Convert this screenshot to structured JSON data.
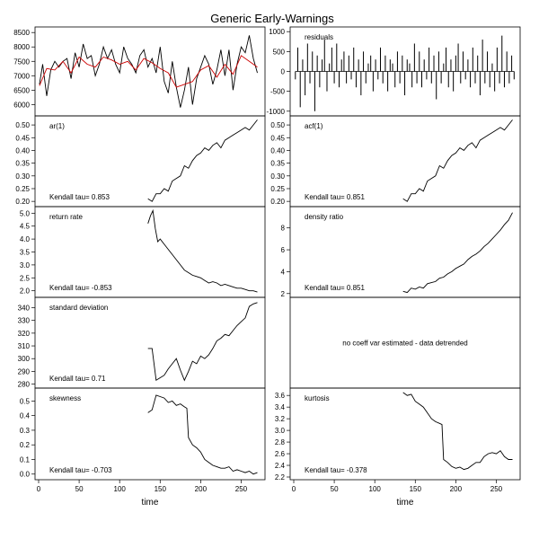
{
  "figure": {
    "title": "Generic Early-Warnings"
  },
  "chart_data": [
    {
      "id": "data",
      "type": "line",
      "panel": "left-1",
      "xlim": [
        0,
        275
      ],
      "ylim": [
        5700,
        8600
      ],
      "yticks": [
        "6000",
        "6500",
        "7000",
        "7500",
        "8000",
        "8500"
      ],
      "label": "",
      "kendall": "",
      "series": [
        {
          "color": "#000000",
          "x": [
            1,
            5,
            10,
            15,
            20,
            25,
            30,
            35,
            40,
            45,
            50,
            55,
            60,
            65,
            70,
            75,
            80,
            85,
            90,
            95,
            100,
            105,
            110,
            115,
            120,
            125,
            130,
            135,
            140,
            145,
            150,
            155,
            160,
            165,
            170,
            175,
            180,
            185,
            190,
            195,
            200,
            205,
            210,
            215,
            220,
            225,
            230,
            235,
            240,
            245,
            250,
            255,
            260,
            265,
            270
          ],
          "y": [
            6700,
            7400,
            6300,
            7200,
            7500,
            7300,
            7500,
            7600,
            6900,
            7800,
            7300,
            8100,
            7600,
            7700,
            7000,
            7400,
            8000,
            7600,
            7900,
            7400,
            7100,
            8000,
            7600,
            7400,
            7100,
            7700,
            7900,
            7300,
            7600,
            7100,
            8000,
            6800,
            6400,
            7500,
            6600,
            5900,
            6500,
            7300,
            6000,
            6900,
            7300,
            7700,
            7400,
            6700,
            7200,
            7900,
            7000,
            7900,
            6500,
            7400,
            8000,
            7800,
            8400,
            7600,
            7100
          ]
        },
        {
          "color": "#cc0000",
          "x": [
            1,
            10,
            20,
            30,
            40,
            50,
            60,
            70,
            80,
            90,
            100,
            110,
            120,
            130,
            140,
            150,
            160,
            170,
            180,
            190,
            200,
            210,
            220,
            230,
            240,
            250,
            260,
            270
          ],
          "y": [
            6650,
            7250,
            7200,
            7500,
            7100,
            7650,
            7400,
            7300,
            7650,
            7550,
            7400,
            7500,
            7200,
            7600,
            7450,
            7250,
            7100,
            6600,
            6700,
            6800,
            7200,
            7350,
            6950,
            7400,
            7050,
            7700,
            7500,
            7300
          ]
        }
      ]
    },
    {
      "id": "residuals",
      "type": "bar",
      "panel": "right-1",
      "xlim": [
        0,
        275
      ],
      "ylim": [
        -1050,
        1050
      ],
      "yticks": [
        "-1000",
        "-500",
        "0",
        "500",
        "1000"
      ],
      "label": "residuals",
      "kendall": "",
      "x": [
        2,
        5,
        8,
        11,
        14,
        17,
        20,
        23,
        26,
        29,
        32,
        35,
        38,
        41,
        44,
        47,
        50,
        53,
        56,
        59,
        62,
        65,
        68,
        71,
        74,
        77,
        80,
        83,
        86,
        89,
        92,
        95,
        98,
        101,
        104,
        107,
        110,
        113,
        116,
        119,
        122,
        125,
        128,
        131,
        134,
        137,
        140,
        143,
        146,
        149,
        152,
        155,
        158,
        161,
        164,
        167,
        170,
        173,
        176,
        179,
        182,
        185,
        188,
        191,
        194,
        197,
        200,
        203,
        206,
        209,
        212,
        215,
        218,
        221,
        224,
        227,
        230,
        233,
        236,
        239,
        242,
        245,
        248,
        251,
        254,
        257,
        260,
        263,
        266,
        269,
        272
      ],
      "values": [
        -200,
        600,
        -900,
        300,
        -600,
        700,
        -300,
        500,
        -1000,
        400,
        -400,
        300,
        800,
        -500,
        200,
        600,
        -300,
        700,
        -400,
        300,
        500,
        -300,
        400,
        -200,
        600,
        -400,
        300,
        -600,
        500,
        -300,
        200,
        400,
        -500,
        300,
        -200,
        600,
        -300,
        400,
        -500,
        300,
        200,
        -400,
        500,
        -300,
        400,
        -600,
        300,
        200,
        -400,
        700,
        -300,
        500,
        -400,
        300,
        -200,
        600,
        -300,
        400,
        -700,
        500,
        -300,
        200,
        600,
        -400,
        300,
        -500,
        400,
        700,
        -300,
        500,
        -200,
        300,
        -400,
        600,
        -300,
        400,
        -600,
        800,
        -300,
        500,
        -400,
        200,
        -500,
        600,
        -300,
        900,
        -400,
        500,
        -300,
        400,
        -200
      ]
    },
    {
      "id": "ar1",
      "type": "line",
      "panel": "left-2",
      "xlim": [
        0,
        275
      ],
      "ylim": [
        0.19,
        0.525
      ],
      "yticks": [
        "0.20",
        "0.25",
        "0.30",
        "0.35",
        "0.40",
        "0.45",
        "0.50"
      ],
      "label": "ar(1)",
      "kendall": "Kendall tau= 0.853",
      "series": [
        {
          "color": "#000000",
          "x": [
            135,
            140,
            145,
            150,
            155,
            160,
            165,
            170,
            175,
            180,
            185,
            190,
            195,
            200,
            205,
            210,
            215,
            220,
            225,
            230,
            235,
            240,
            245,
            250,
            255,
            260,
            265,
            270
          ],
          "y": [
            0.21,
            0.2,
            0.23,
            0.23,
            0.25,
            0.24,
            0.28,
            0.29,
            0.3,
            0.34,
            0.33,
            0.36,
            0.38,
            0.39,
            0.41,
            0.4,
            0.42,
            0.43,
            0.41,
            0.44,
            0.45,
            0.46,
            0.47,
            0.48,
            0.49,
            0.48,
            0.5,
            0.52
          ]
        }
      ]
    },
    {
      "id": "acf1",
      "type": "line",
      "panel": "right-2",
      "xlim": [
        0,
        275
      ],
      "ylim": [
        0.19,
        0.525
      ],
      "yticks": [
        "0.20",
        "0.25",
        "0.30",
        "0.35",
        "0.40",
        "0.45",
        "0.50"
      ],
      "label": "acf(1)",
      "kendall": "Kendall tau= 0.851",
      "series": [
        {
          "color": "#000000",
          "x": [
            135,
            140,
            145,
            150,
            155,
            160,
            165,
            170,
            175,
            180,
            185,
            190,
            195,
            200,
            205,
            210,
            215,
            220,
            225,
            230,
            235,
            240,
            245,
            250,
            255,
            260,
            265,
            270
          ],
          "y": [
            0.21,
            0.2,
            0.23,
            0.23,
            0.25,
            0.24,
            0.28,
            0.29,
            0.3,
            0.34,
            0.33,
            0.36,
            0.38,
            0.39,
            0.41,
            0.4,
            0.42,
            0.43,
            0.41,
            0.44,
            0.45,
            0.46,
            0.47,
            0.48,
            0.49,
            0.48,
            0.5,
            0.52
          ]
        }
      ]
    },
    {
      "id": "return-rate",
      "type": "line",
      "panel": "left-3",
      "xlim": [
        0,
        275
      ],
      "ylim": [
        1.85,
        5.15
      ],
      "yticks": [
        "2.0",
        "2.5",
        "3.0",
        "3.5",
        "4.0",
        "4.5",
        "5.0"
      ],
      "label": "return rate",
      "kendall": "Kendall tau= -0.853",
      "series": [
        {
          "color": "#000000",
          "x": [
            135,
            138,
            141,
            144,
            147,
            150,
            155,
            160,
            165,
            170,
            175,
            180,
            185,
            190,
            195,
            200,
            205,
            210,
            215,
            220,
            225,
            230,
            235,
            240,
            245,
            250,
            255,
            260,
            265,
            270
          ],
          "y": [
            4.6,
            4.9,
            5.1,
            4.4,
            3.9,
            4.0,
            3.8,
            3.6,
            3.4,
            3.2,
            3.0,
            2.8,
            2.7,
            2.6,
            2.55,
            2.5,
            2.4,
            2.3,
            2.35,
            2.3,
            2.2,
            2.25,
            2.2,
            2.15,
            2.1,
            2.1,
            2.05,
            2.0,
            2.0,
            1.95
          ]
        }
      ]
    },
    {
      "id": "density-ratio",
      "type": "line",
      "panel": "right-3",
      "xlim": [
        0,
        275
      ],
      "ylim": [
        1.9,
        9.7
      ],
      "yticks": [
        "2",
        "4",
        "6",
        "8"
      ],
      "label": "density ratio",
      "kendall": "Kendall tau= 0.851",
      "series": [
        {
          "color": "#000000",
          "x": [
            135,
            140,
            145,
            150,
            155,
            160,
            165,
            170,
            175,
            180,
            185,
            190,
            195,
            200,
            205,
            210,
            215,
            220,
            225,
            230,
            235,
            240,
            245,
            250,
            255,
            260,
            265,
            270
          ],
          "y": [
            2.2,
            2.1,
            2.5,
            2.4,
            2.6,
            2.5,
            2.9,
            3.0,
            3.1,
            3.4,
            3.5,
            3.8,
            4.0,
            4.3,
            4.5,
            4.7,
            5.1,
            5.4,
            5.6,
            5.9,
            6.3,
            6.6,
            7.0,
            7.4,
            7.8,
            8.3,
            8.7,
            9.4
          ]
        }
      ]
    },
    {
      "id": "standard-deviation",
      "type": "line",
      "panel": "left-4",
      "xlim": [
        0,
        275
      ],
      "ylim": [
        279,
        346
      ],
      "yticks": [
        "280",
        "290",
        "300",
        "310",
        "320",
        "330",
        "340"
      ],
      "label": "standard deviation",
      "kendall": "Kendall tau= 0.71",
      "series": [
        {
          "color": "#000000",
          "x": [
            135,
            140,
            145,
            150,
            155,
            160,
            165,
            170,
            175,
            180,
            185,
            190,
            195,
            200,
            205,
            210,
            215,
            220,
            225,
            230,
            235,
            240,
            245,
            250,
            255,
            260,
            265,
            270
          ],
          "y": [
            308,
            308,
            283,
            285,
            287,
            292,
            296,
            300,
            291,
            283,
            290,
            298,
            296,
            302,
            300,
            303,
            308,
            314,
            316,
            319,
            318,
            322,
            326,
            329,
            332,
            341,
            343,
            344
          ]
        }
      ]
    },
    {
      "id": "coeff-var",
      "type": "line",
      "panel": "right-4",
      "xlim": [
        0,
        275
      ],
      "ylim": [
        0,
        1
      ],
      "yticks": [],
      "label": "",
      "kendall": "",
      "message": "no coeff var estimated - data detrended",
      "series": []
    },
    {
      "id": "skewness",
      "type": "line",
      "panel": "left-5",
      "xlim": [
        0,
        275
      ],
      "ylim": [
        -0.02,
        0.57
      ],
      "yticks": [
        "0.0",
        "0.1",
        "0.2",
        "0.3",
        "0.4",
        "0.5"
      ],
      "label": "skewness",
      "kendall": "Kendall tau= -0.703",
      "series": [
        {
          "color": "#000000",
          "x": [
            135,
            140,
            145,
            150,
            155,
            160,
            165,
            170,
            175,
            180,
            183,
            185,
            190,
            195,
            200,
            205,
            210,
            215,
            220,
            225,
            230,
            235,
            240,
            245,
            250,
            255,
            260,
            265,
            270
          ],
          "y": [
            0.42,
            0.44,
            0.54,
            0.53,
            0.52,
            0.49,
            0.5,
            0.47,
            0.48,
            0.46,
            0.45,
            0.25,
            0.2,
            0.18,
            0.15,
            0.1,
            0.08,
            0.06,
            0.05,
            0.04,
            0.04,
            0.05,
            0.02,
            0.03,
            0.02,
            0.01,
            0.02,
            0.0,
            0.01
          ]
        }
      ]
    },
    {
      "id": "kurtosis",
      "type": "line",
      "panel": "right-5",
      "xlim": [
        0,
        275
      ],
      "ylim": [
        2.2,
        3.68
      ],
      "yticks": [
        "2.2",
        "2.4",
        "2.6",
        "2.8",
        "3.0",
        "3.2",
        "3.4",
        "3.6"
      ],
      "label": "kurtosis",
      "kendall": "Kendall tau= -0.378",
      "series": [
        {
          "color": "#000000",
          "x": [
            135,
            140,
            145,
            150,
            155,
            160,
            165,
            170,
            175,
            180,
            183,
            185,
            190,
            195,
            200,
            205,
            210,
            215,
            220,
            225,
            230,
            235,
            240,
            245,
            250,
            255,
            260,
            265,
            270
          ],
          "y": [
            3.65,
            3.6,
            3.62,
            3.5,
            3.45,
            3.4,
            3.3,
            3.2,
            3.15,
            3.12,
            3.1,
            2.5,
            2.45,
            2.38,
            2.35,
            2.37,
            2.33,
            2.35,
            2.4,
            2.45,
            2.45,
            2.55,
            2.6,
            2.62,
            2.6,
            2.65,
            2.55,
            2.5,
            2.5
          ]
        }
      ]
    }
  ],
  "axes": {
    "x_ticks": [
      "0",
      "50",
      "100",
      "150",
      "200",
      "250"
    ],
    "x_tick_values": [
      0,
      50,
      100,
      150,
      200,
      250
    ],
    "x_label": "time"
  }
}
